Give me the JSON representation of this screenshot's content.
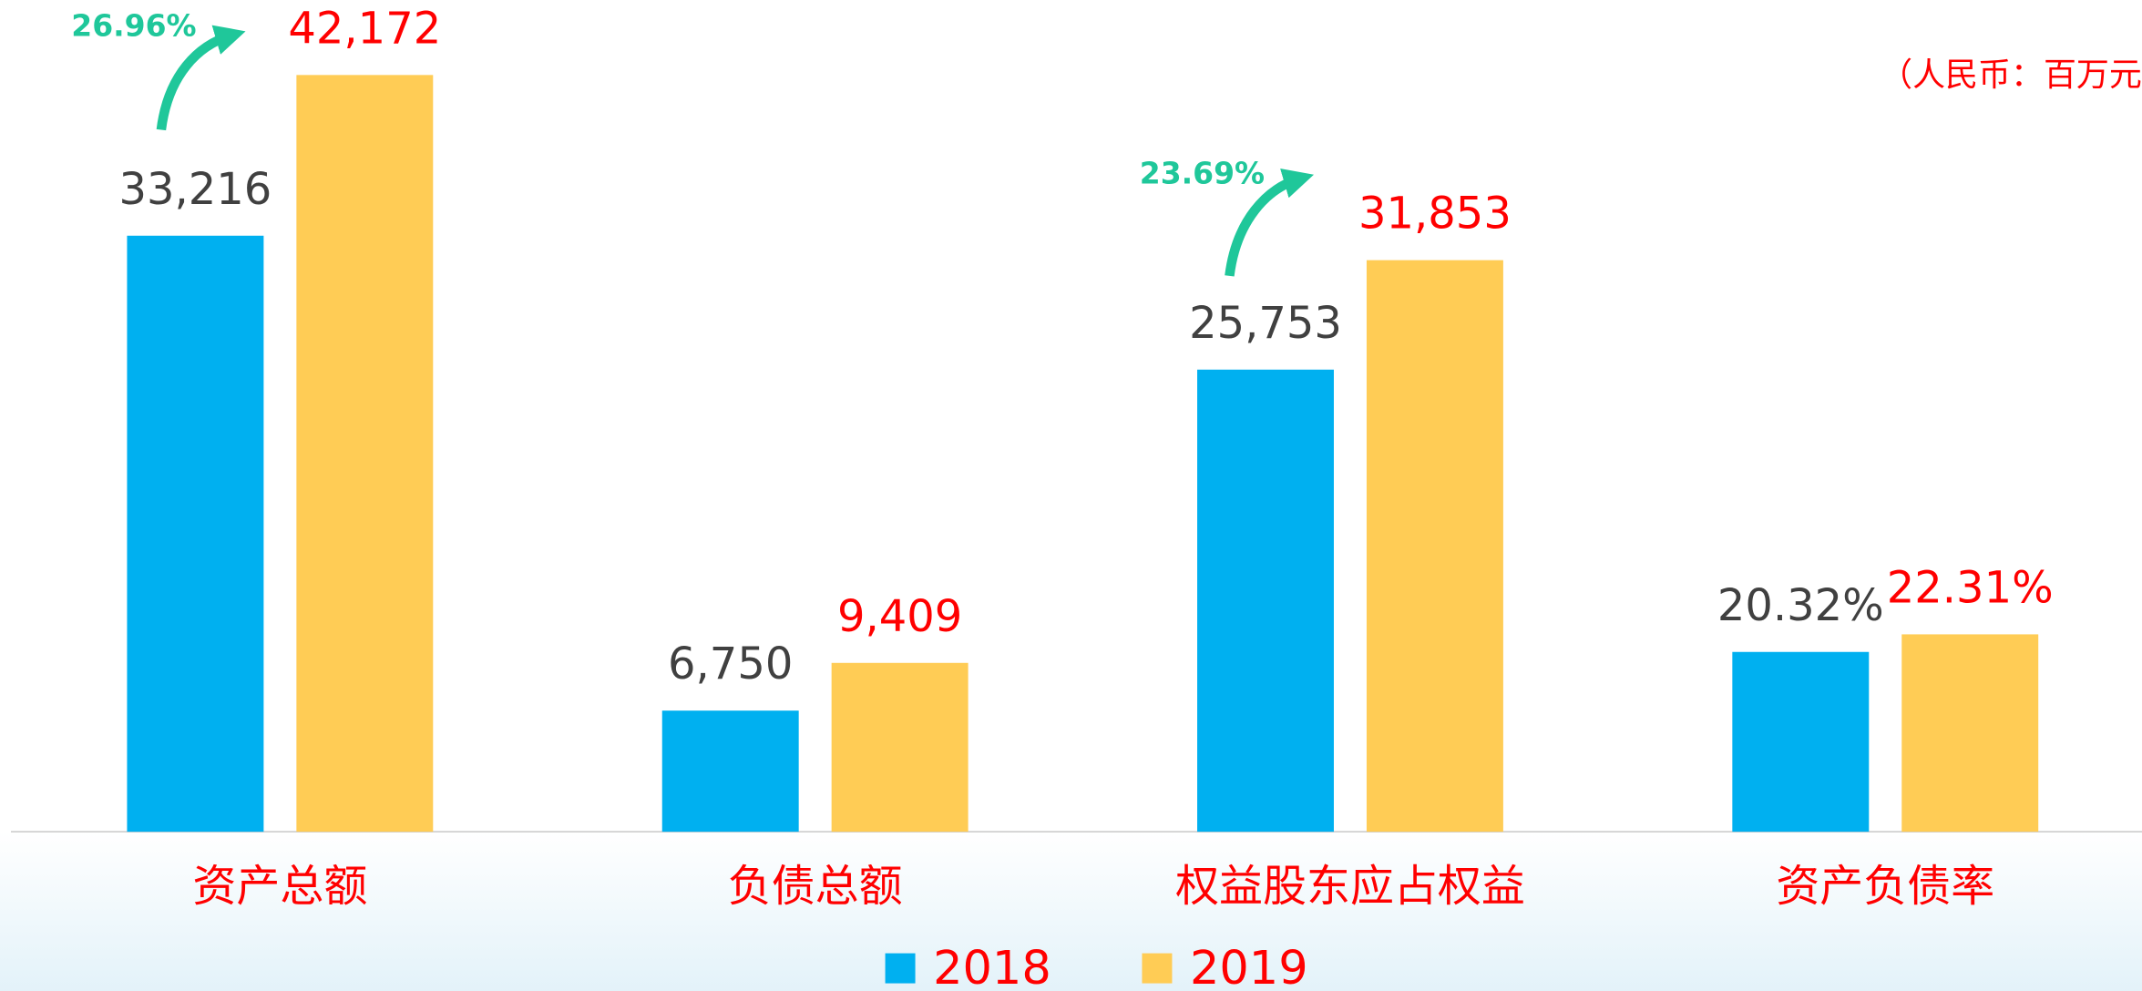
{
  "chart_data": [
    {
      "type": "bar",
      "unit_note": "（人民币：百万元）",
      "categories": [
        "资产总额",
        "负债总额",
        "权益股东应占权益"
      ],
      "series": [
        {
          "name": "2018",
          "color": "#00b0f0",
          "label_color": "#404040",
          "values": [
            33216,
            6750,
            25753
          ],
          "value_labels": [
            "33,216",
            "6,750",
            "25,753"
          ]
        },
        {
          "name": "2019",
          "color": "#ffcc55",
          "label_color": "#ff0000",
          "values": [
            42172,
            9409,
            31853
          ],
          "value_labels": [
            "42,172",
            "9,409",
            "31,853"
          ]
        }
      ],
      "annotations": [
        "26.96%",
        "23.69%"
      ],
      "ylim": [
        0,
        46350
      ]
    },
    {
      "type": "bar",
      "categories": [
        "资产负债率"
      ],
      "series": [
        {
          "color": "#00b0f0",
          "label_color": "#404040",
          "values": [
            20.32
          ],
          "value_labels": [
            "20.32%"
          ]
        },
        {
          "color": "#ffcc55",
          "label_color": "#ff0000",
          "values": [
            22.31
          ],
          "value_labels": [
            "22.31%"
          ]
        }
      ],
      "ylim": [
        0,
        94
      ]
    }
  ]
}
